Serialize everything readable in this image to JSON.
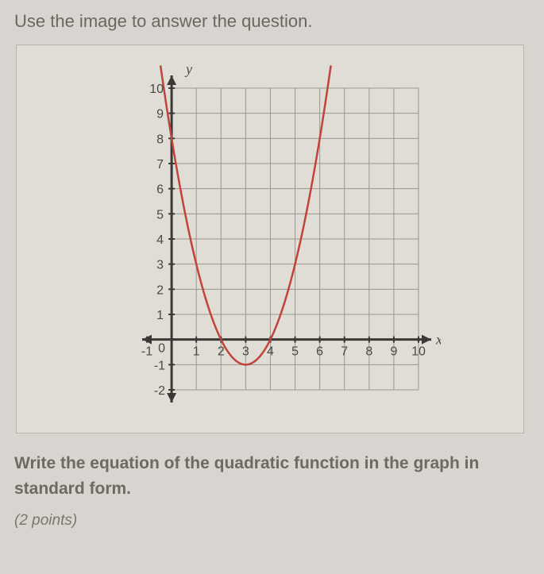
{
  "instruction": "Use the image to answer the question.",
  "question_line1": "Write the equation of the quadratic function in the graph in",
  "question_line2": "standard form.",
  "points_label": "(2 points)",
  "chart": {
    "type": "line",
    "x_label": "x",
    "y_label": "y",
    "xlim": [
      -1,
      10
    ],
    "ylim": [
      -2,
      10
    ],
    "x_ticks": [
      -1,
      0,
      1,
      2,
      3,
      4,
      5,
      6,
      7,
      8,
      9,
      10
    ],
    "y_ticks": [
      -2,
      -1,
      0,
      1,
      2,
      3,
      4,
      5,
      6,
      7,
      8,
      9,
      10
    ],
    "grid_color": "#9a978d",
    "axis_color": "#3a3935",
    "curve_color": "#c0443a",
    "background_color": "#e0ddd6",
    "curve_width": 2.5,
    "label_fontsize": 18,
    "tick_fontsize": 16,
    "vertex": [
      3,
      -1
    ],
    "curve_points": [
      [
        -0.317,
        10
      ],
      [
        0,
        8
      ],
      [
        1,
        3
      ],
      [
        2,
        0
      ],
      [
        3,
        -1
      ],
      [
        4,
        0
      ],
      [
        5,
        3
      ],
      [
        6,
        8
      ],
      [
        6.317,
        10
      ]
    ]
  }
}
